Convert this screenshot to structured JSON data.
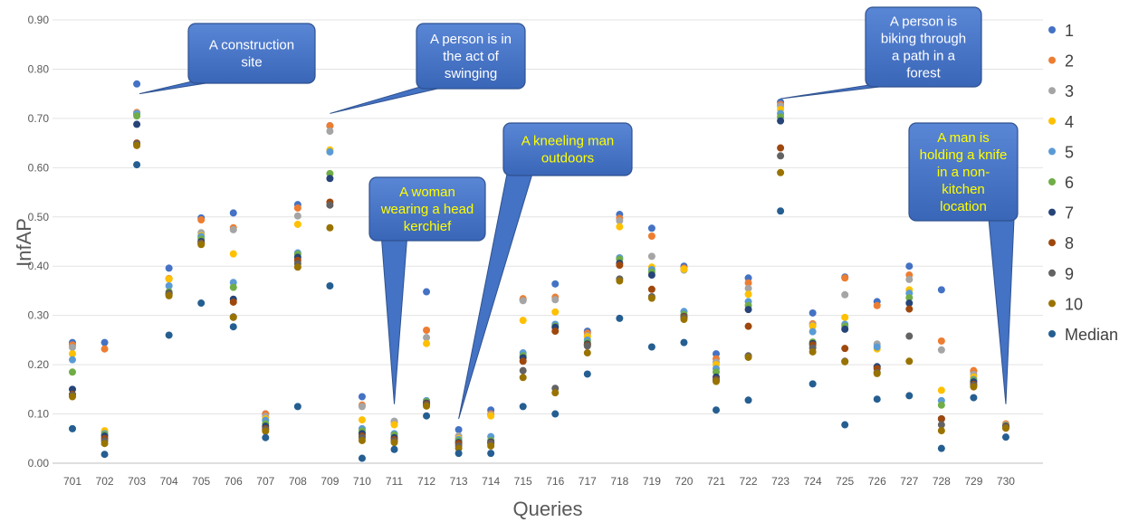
{
  "chart_data": {
    "type": "scatter",
    "xlabel": "Queries",
    "ylabel": "InfAP",
    "ylim": [
      0,
      0.9
    ],
    "yticks": [
      "0.00",
      "0.10",
      "0.20",
      "0.30",
      "0.40",
      "0.50",
      "0.60",
      "0.70",
      "0.80",
      "0.90"
    ],
    "categories": [
      "701",
      "702",
      "703",
      "704",
      "705",
      "706",
      "707",
      "708",
      "709",
      "710",
      "711",
      "712",
      "713",
      "714",
      "715",
      "716",
      "717",
      "718",
      "719",
      "720",
      "721",
      "722",
      "723",
      "724",
      "725",
      "726",
      "727",
      "728",
      "729",
      "730"
    ],
    "grid": "horizontal",
    "legend_position": "right",
    "series": [
      {
        "name": "1",
        "color": "#4472c4",
        "values": [
          0.245,
          0.245,
          0.77,
          0.396,
          0.498,
          0.508,
          0.1,
          0.525,
          0.685,
          0.135,
          0.085,
          0.348,
          0.068,
          0.108,
          0.332,
          0.364,
          0.268,
          0.505,
          0.477,
          0.4,
          0.222,
          0.376,
          0.733,
          0.305,
          0.378,
          0.328,
          0.4,
          0.352,
          0.187,
          0.078
        ]
      },
      {
        "name": "2",
        "color": "#ed7d31",
        "values": [
          0.24,
          0.232,
          0.712,
          0.375,
          0.494,
          0.478,
          0.1,
          0.518,
          0.685,
          0.118,
          0.083,
          0.27,
          0.055,
          0.1,
          0.334,
          0.337,
          0.264,
          0.497,
          0.461,
          0.396,
          0.212,
          0.366,
          0.728,
          0.283,
          0.376,
          0.32,
          0.382,
          0.248,
          0.188,
          0.08
        ]
      },
      {
        "name": "3",
        "color": "#a5a5a5",
        "values": [
          0.235,
          0.064,
          0.708,
          0.374,
          0.468,
          0.474,
          0.095,
          0.502,
          0.674,
          0.115,
          0.085,
          0.255,
          0.055,
          0.098,
          0.33,
          0.332,
          0.259,
          0.492,
          0.42,
          0.392,
          0.205,
          0.355,
          0.725,
          0.28,
          0.342,
          0.242,
          0.373,
          0.23,
          0.18,
          0.078
        ]
      },
      {
        "name": "4",
        "color": "#ffc000",
        "values": [
          0.222,
          0.066,
          0.71,
          0.374,
          0.462,
          0.425,
          0.09,
          0.485,
          0.636,
          0.088,
          0.078,
          0.243,
          0.05,
          0.096,
          0.29,
          0.307,
          0.257,
          0.48,
          0.398,
          0.394,
          0.2,
          0.343,
          0.718,
          0.278,
          0.296,
          0.232,
          0.352,
          0.148,
          0.175,
          0.077
        ]
      },
      {
        "name": "5",
        "color": "#5b9bd5",
        "values": [
          0.21,
          0.06,
          0.71,
          0.36,
          0.46,
          0.367,
          0.087,
          0.427,
          0.632,
          0.07,
          0.06,
          0.127,
          0.048,
          0.054,
          0.224,
          0.282,
          0.25,
          0.417,
          0.393,
          0.308,
          0.192,
          0.328,
          0.71,
          0.267,
          0.282,
          0.236,
          0.345,
          0.127,
          0.17,
          0.076
        ]
      },
      {
        "name": "6",
        "color": "#70ad47",
        "values": [
          0.185,
          0.058,
          0.705,
          0.348,
          0.455,
          0.357,
          0.08,
          0.424,
          0.588,
          0.065,
          0.057,
          0.125,
          0.045,
          0.046,
          0.218,
          0.278,
          0.245,
          0.414,
          0.388,
          0.302,
          0.185,
          0.32,
          0.703,
          0.246,
          0.278,
          0.195,
          0.336,
          0.118,
          0.168,
          0.075
        ]
      },
      {
        "name": "7",
        "color": "#264478",
        "values": [
          0.15,
          0.055,
          0.688,
          0.345,
          0.45,
          0.333,
          0.075,
          0.418,
          0.578,
          0.06,
          0.052,
          0.122,
          0.042,
          0.043,
          0.214,
          0.276,
          0.242,
          0.406,
          0.382,
          0.298,
          0.175,
          0.312,
          0.695,
          0.243,
          0.272,
          0.196,
          0.325,
          0.09,
          0.165,
          0.075
        ]
      },
      {
        "name": "8",
        "color": "#9e480e",
        "values": [
          0.14,
          0.05,
          0.65,
          0.344,
          0.447,
          0.327,
          0.07,
          0.412,
          0.53,
          0.055,
          0.048,
          0.12,
          0.04,
          0.041,
          0.207,
          0.268,
          0.24,
          0.402,
          0.353,
          0.297,
          0.17,
          0.278,
          0.64,
          0.24,
          0.233,
          0.192,
          0.313,
          0.09,
          0.16,
          0.074
        ]
      },
      {
        "name": "9",
        "color": "#636363",
        "values": [
          0.138,
          0.045,
          0.648,
          0.343,
          0.446,
          0.297,
          0.068,
          0.405,
          0.524,
          0.052,
          0.045,
          0.118,
          0.035,
          0.04,
          0.188,
          0.152,
          0.238,
          0.374,
          0.338,
          0.295,
          0.168,
          0.218,
          0.624,
          0.234,
          0.207,
          0.184,
          0.258,
          0.078,
          0.158,
          0.073
        ]
      },
      {
        "name": "10",
        "color": "#997300",
        "values": [
          0.135,
          0.04,
          0.645,
          0.34,
          0.444,
          0.296,
          0.065,
          0.398,
          0.478,
          0.046,
          0.042,
          0.116,
          0.03,
          0.035,
          0.174,
          0.143,
          0.224,
          0.37,
          0.335,
          0.292,
          0.166,
          0.215,
          0.59,
          0.226,
          0.206,
          0.182,
          0.207,
          0.066,
          0.155,
          0.071
        ]
      },
      {
        "name": "Median",
        "color": "#255e91",
        "values": [
          0.07,
          0.018,
          0.606,
          0.26,
          0.325,
          0.277,
          0.052,
          0.115,
          0.36,
          0.01,
          0.028,
          0.096,
          0.02,
          0.02,
          0.115,
          0.1,
          0.181,
          0.294,
          0.236,
          0.245,
          0.108,
          0.128,
          0.512,
          0.161,
          0.078,
          0.13,
          0.137,
          0.03,
          0.133,
          0.053
        ]
      }
    ],
    "annotations": [
      {
        "text_lines": [
          "A construction",
          "site"
        ],
        "text_color": "#ffffff",
        "target_query": "703",
        "target_value": 0.75
      },
      {
        "text_lines": [
          "A person is in",
          "the act of",
          "swinging"
        ],
        "text_color": "#ffffff",
        "target_query": "709",
        "target_value": 0.71
      },
      {
        "text_lines": [
          "A woman",
          "wearing a head",
          "kerchief"
        ],
        "text_color": "#ffff00",
        "target_query": "711",
        "target_value": 0.12
      },
      {
        "text_lines": [
          "A kneeling man",
          "outdoors"
        ],
        "text_color": "#ffff00",
        "target_query": "713",
        "target_value": 0.09
      },
      {
        "text_lines": [
          "A person is",
          "biking through",
          "a path in a",
          "forest"
        ],
        "text_color": "#ffffff",
        "target_query": "723",
        "target_value": 0.74
      },
      {
        "text_lines": [
          "A man is",
          "holding a knife",
          "in a non-",
          "kitchen",
          "location"
        ],
        "text_color": "#ffff00",
        "target_query": "730",
        "target_value": 0.12
      }
    ]
  }
}
